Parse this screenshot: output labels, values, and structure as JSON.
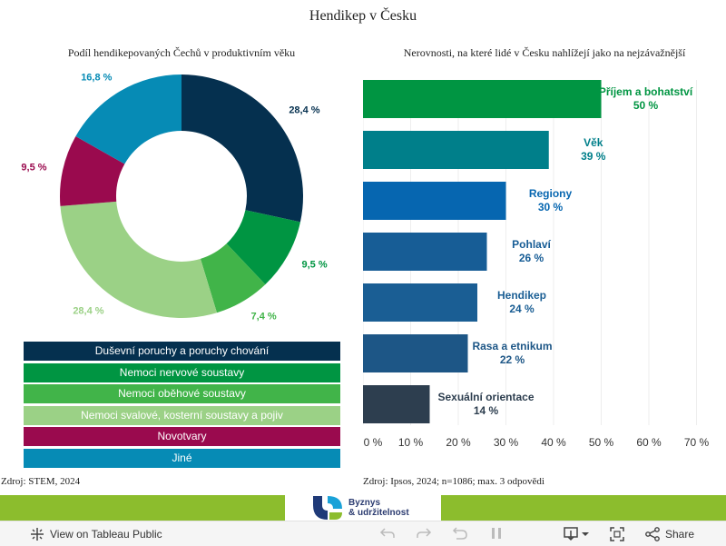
{
  "title": "Hendikep v Česku",
  "left_subtitle": "Podíl hendikepovaných Čechů v produktivním věku",
  "right_subtitle": "Nerovnosti, na které lidé v Česku nahlížejí jako na nejzávažnější",
  "left_source": "Zdroj: STEM, 2024",
  "right_source": "Zdroj: Ipsos, 2024; n=1086; max. 3 odpovědi",
  "chart_data": [
    {
      "type": "pie",
      "title": "Podíl hendikepovaných Čechů v produktivním věku",
      "slices": [
        {
          "label": "Duševní poruchy a poruchy chování",
          "value": 28.4,
          "display": "28,4 %",
          "color": "#05304f"
        },
        {
          "label": "Nemoci nervové soustavy",
          "value": 9.5,
          "display": "9,5 %",
          "color": "#009542"
        },
        {
          "label": "Nemoci oběhové soustavy",
          "value": 7.4,
          "display": "7,4 %",
          "color": "#41b449"
        },
        {
          "label": "Nemoci svalové, kosterní soustavy a pojiv",
          "value": 28.4,
          "display": "28,4 %",
          "color": "#9bd186"
        },
        {
          "label": "Novotvary",
          "value": 9.5,
          "display": "9,5 %",
          "color": "#9a0a4e"
        },
        {
          "label": "Jiné",
          "value": 16.8,
          "display": "16,8 %",
          "color": "#068bb5"
        }
      ],
      "legend_placement": "bottom"
    },
    {
      "type": "bar",
      "orientation": "horizontal",
      "title": "Nerovnosti, na které lidé v Česku nahlížejí jako na nejzávažnější",
      "categories": [
        "Příjem a bohatství",
        "Věk",
        "Regiony",
        "Pohlaví",
        "Hendikep",
        "Rasa a etnikum",
        "Sexuální orientace"
      ],
      "values": [
        50,
        39,
        30,
        26,
        24,
        22,
        14
      ],
      "value_labels": [
        "50 %",
        "39 %",
        "30 %",
        "26 %",
        "24 %",
        "22 %",
        "14 %"
      ],
      "colors": [
        "#009542",
        "#007f8a",
        "#0666b0",
        "#175d96",
        "#1a5e94",
        "#1d5686",
        "#2d3e4f"
      ],
      "xlim": [
        0,
        70
      ],
      "xticks": [
        0,
        10,
        20,
        30,
        40,
        50,
        60,
        70
      ],
      "xtick_labels": [
        "0 %",
        "10 %",
        "20 %",
        "30 %",
        "40 %",
        "50 %",
        "60 %",
        "70 %"
      ],
      "grid": true
    }
  ],
  "logo": {
    "line1": "Byznys",
    "line2": "& udržitelnost"
  },
  "toolbar": {
    "view_label": "View on Tableau Public",
    "share_label": "Share"
  }
}
